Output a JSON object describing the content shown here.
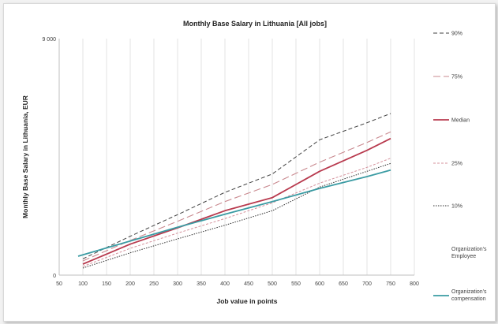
{
  "chart_data": {
    "type": "line",
    "title": "Monthly Base Salary in Lithuania [All jobs]",
    "xlabel": "Job value in points",
    "ylabel": "Monthly Base Salary in Lithuania, EUR",
    "xlim": [
      50,
      800
    ],
    "ylim": [
      0,
      9000
    ],
    "x_ticks": [
      50,
      100,
      150,
      200,
      250,
      300,
      350,
      400,
      450,
      500,
      550,
      600,
      650,
      700,
      750,
      800
    ],
    "y_ticks": [
      0,
      9000
    ],
    "y_tick_labels": [
      "0",
      "9 000"
    ],
    "grid": "vertical",
    "legend_position": "right",
    "series": [
      {
        "name": "90%",
        "color": "#404040",
        "dash": "dash",
        "points": [
          [
            100,
            620
          ],
          [
            200,
            1480
          ],
          [
            300,
            2300
          ],
          [
            400,
            3150
          ],
          [
            500,
            3850
          ],
          [
            600,
            5150
          ],
          [
            700,
            5800
          ],
          [
            750,
            6150
          ]
        ]
      },
      {
        "name": "75%",
        "color": "#c9898f",
        "dash": "longdash",
        "points": [
          [
            100,
            540
          ],
          [
            200,
            1320
          ],
          [
            300,
            2050
          ],
          [
            400,
            2800
          ],
          [
            500,
            3450
          ],
          [
            600,
            4300
          ],
          [
            700,
            5050
          ],
          [
            750,
            5450
          ]
        ]
      },
      {
        "name": "Median",
        "color": "#b83a4e",
        "dash": "solid",
        "points": [
          [
            100,
            420
          ],
          [
            200,
            1180
          ],
          [
            300,
            1800
          ],
          [
            400,
            2450
          ],
          [
            500,
            2950
          ],
          [
            600,
            3950
          ],
          [
            700,
            4750
          ],
          [
            750,
            5200
          ]
        ]
      },
      {
        "name": "25%",
        "color": "#d4909b",
        "dash": "shortdash",
        "points": [
          [
            100,
            330
          ],
          [
            200,
            1020
          ],
          [
            300,
            1600
          ],
          [
            400,
            2150
          ],
          [
            500,
            2750
          ],
          [
            600,
            3500
          ],
          [
            700,
            4100
          ],
          [
            750,
            4450
          ]
        ]
      },
      {
        "name": "10%",
        "color": "#303030",
        "dash": "dot",
        "points": [
          [
            100,
            270
          ],
          [
            200,
            850
          ],
          [
            300,
            1380
          ],
          [
            400,
            1900
          ],
          [
            500,
            2450
          ],
          [
            600,
            3350
          ],
          [
            700,
            3950
          ],
          [
            750,
            4250
          ]
        ]
      },
      {
        "name": "Organization's Employee",
        "color": "#7e4a8a",
        "dash": "none",
        "points": []
      },
      {
        "name": "Organization's compensation",
        "color": "#3a9ba3",
        "dash": "solid",
        "points": [
          [
            90,
            720
          ],
          [
            200,
            1300
          ],
          [
            300,
            1820
          ],
          [
            400,
            2320
          ],
          [
            500,
            2800
          ],
          [
            600,
            3300
          ],
          [
            700,
            3750
          ],
          [
            750,
            4000
          ]
        ]
      }
    ]
  }
}
